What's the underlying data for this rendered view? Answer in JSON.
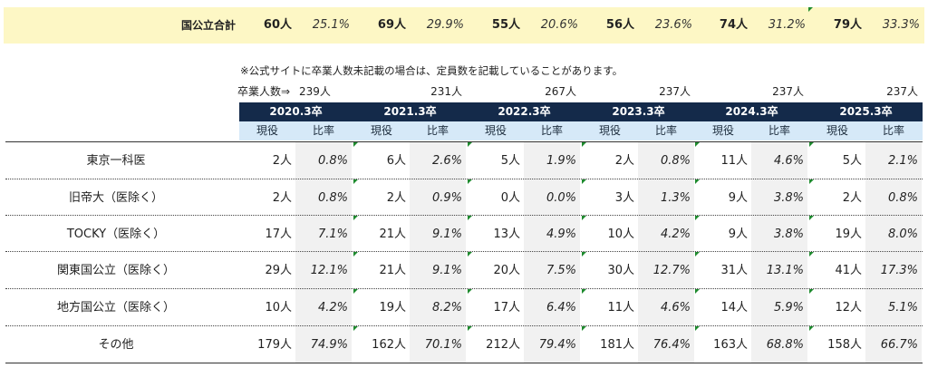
{
  "totals": {
    "label": "国公立合計",
    "values": [
      {
        "count": "60人",
        "ratio": "25.1%"
      },
      {
        "count": "69人",
        "ratio": "29.9%"
      },
      {
        "count": "55人",
        "ratio": "20.6%"
      },
      {
        "count": "56人",
        "ratio": "23.6%"
      },
      {
        "count": "74人",
        "ratio": "31.2%"
      },
      {
        "count": "79人",
        "ratio": "33.3%"
      }
    ]
  },
  "note": "※公式サイトに卒業人数未記載の場合は、定員数を記載していることがあります。",
  "graduates": {
    "label": "卒業人数⇒",
    "values": [
      "239人",
      "231人",
      "267人",
      "237人",
      "237人",
      "237人"
    ]
  },
  "years": [
    "2020.3卒",
    "2021.3卒",
    "2022.3卒",
    "2023.3卒",
    "2024.3卒",
    "2025.3卒"
  ],
  "sub_headers": {
    "current": "現役",
    "ratio": "比率"
  },
  "rows": [
    {
      "label": "東京一科医",
      "cells": [
        [
          "2人",
          "0.8%"
        ],
        [
          "6人",
          "2.6%"
        ],
        [
          "5人",
          "1.9%"
        ],
        [
          "2人",
          "0.8%"
        ],
        [
          "11人",
          "4.6%"
        ],
        [
          "5人",
          "2.1%"
        ]
      ]
    },
    {
      "label": "旧帝大（医除く）",
      "cells": [
        [
          "2人",
          "0.8%"
        ],
        [
          "2人",
          "0.9%"
        ],
        [
          "0人",
          "0.0%"
        ],
        [
          "3人",
          "1.3%"
        ],
        [
          "9人",
          "3.8%"
        ],
        [
          "2人",
          "0.8%"
        ]
      ]
    },
    {
      "label": "TOCKY（医除く）",
      "cells": [
        [
          "17人",
          "7.1%"
        ],
        [
          "21人",
          "9.1%"
        ],
        [
          "13人",
          "4.9%"
        ],
        [
          "10人",
          "4.2%"
        ],
        [
          "9人",
          "3.8%"
        ],
        [
          "19人",
          "8.0%"
        ]
      ]
    },
    {
      "label": "関東国公立（医除く）",
      "cells": [
        [
          "29人",
          "12.1%"
        ],
        [
          "21人",
          "9.1%"
        ],
        [
          "20人",
          "7.5%"
        ],
        [
          "30人",
          "12.7%"
        ],
        [
          "31人",
          "13.1%"
        ],
        [
          "41人",
          "17.3%"
        ]
      ]
    },
    {
      "label": "地方国公立（医除く）",
      "cells": [
        [
          "10人",
          "4.2%"
        ],
        [
          "19人",
          "8.2%"
        ],
        [
          "17人",
          "6.4%"
        ],
        [
          "11人",
          "4.6%"
        ],
        [
          "14人",
          "5.9%"
        ],
        [
          "12人",
          "5.1%"
        ]
      ]
    },
    {
      "label": "その他",
      "cells": [
        [
          "179人",
          "74.9%"
        ],
        [
          "162人",
          "70.1%"
        ],
        [
          "212人",
          "79.4%"
        ],
        [
          "181人",
          "76.4%"
        ],
        [
          "163人",
          "68.8%"
        ],
        [
          "158人",
          "66.7%"
        ]
      ]
    }
  ],
  "colors": {
    "header_bg": "#142a4a",
    "subheader_bg": "#d6e9f8",
    "total_bg": "#fdf7c5",
    "marker": "#1e8a2e"
  }
}
